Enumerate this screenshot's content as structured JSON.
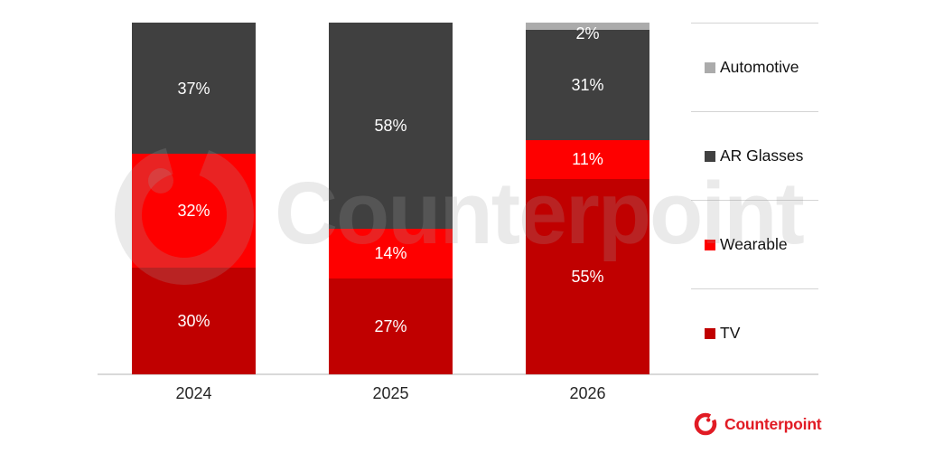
{
  "watermark": {
    "text": "Counterpoint"
  },
  "brand": {
    "name": "Counterpoint"
  },
  "colors": {
    "brand_red": "#e11b24",
    "axis_line": "#d9d9d9",
    "legend_divider": "#d4d4d4",
    "bar_label_text": "#ffffff"
  },
  "chart_data": {
    "type": "bar",
    "stacked": true,
    "title": "",
    "xlabel": "",
    "ylabel": "",
    "grid": false,
    "legend_position": "right",
    "value_suffix": "%",
    "categories": [
      "2024",
      "2025",
      "2026"
    ],
    "series": [
      {
        "name": "Automotive",
        "color": "#ababab",
        "values": [
          0,
          0,
          2
        ]
      },
      {
        "name": "AR Glasses",
        "color": "#404040",
        "values": [
          37,
          58,
          31
        ]
      },
      {
        "name": "Wearable",
        "color": "#fe0000",
        "values": [
          32,
          14,
          11
        ]
      },
      {
        "name": "TV",
        "color": "#c00000",
        "values": [
          30,
          27,
          55
        ]
      }
    ]
  }
}
